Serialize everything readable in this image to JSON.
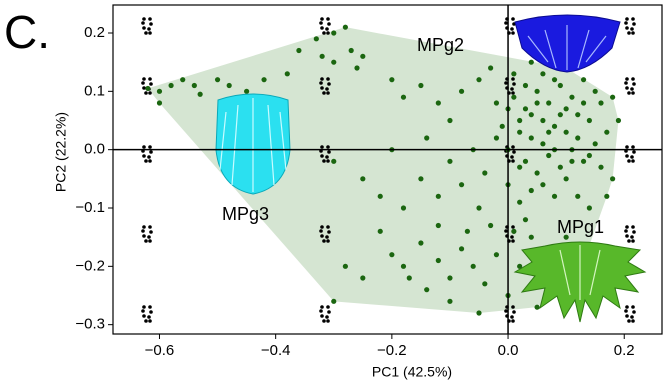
{
  "chart_data": {
    "type": "scatter",
    "panel_label": "C.",
    "xlabel": "PC1 (42.5%)",
    "ylabel": "PC2 (22.2%)",
    "annotations": [
      "MPg2",
      "MPg3",
      "MPg1"
    ],
    "xlim": [
      -0.68,
      0.265
    ],
    "ylim": [
      -0.316,
      0.248
    ],
    "xticks": [
      {
        "value": -0.6,
        "label": "−0.6"
      },
      {
        "value": -0.4,
        "label": "−0.4"
      },
      {
        "value": -0.2,
        "label": "−0.2"
      },
      {
        "value": 0,
        "label": "0.0"
      },
      0.2
    ],
    "yticks": [
      0.2,
      0.1,
      {
        "value": 0,
        "label": "0.0"
      },
      {
        "value": -0.1,
        "label": "−0.1"
      },
      {
        "value": -0.2,
        "label": "−0.2"
      },
      {
        "value": -0.3,
        "label": "−0.3"
      }
    ],
    "color": "#1b6610",
    "hull_color": "#d5e5d2",
    "x": [
      -0.62,
      -0.6,
      -0.6,
      -0.58,
      -0.56,
      -0.54,
      -0.53,
      -0.5,
      -0.48,
      -0.45,
      -0.42,
      -0.38,
      -0.36,
      -0.33,
      -0.3,
      -0.28,
      -0.3,
      -0.27,
      -0.25,
      -0.26,
      -0.32,
      -0.2,
      -0.18,
      -0.15,
      -0.1,
      -0.12,
      -0.08,
      -0.05,
      -0.03,
      -0.02,
      0.0,
      0.02,
      0.04,
      0.06,
      0.08,
      0.1,
      0.12,
      0.14,
      0.16,
      0.03,
      0.05,
      0.07,
      0.09,
      0.11,
      0.13,
      0.15,
      0.17,
      0.01,
      0.03,
      0.05,
      0.07,
      0.09,
      0.11,
      0.13,
      0.15,
      0.18,
      0.02,
      0.04,
      0.06,
      0.08,
      0.1,
      0.12,
      0.14,
      0.16,
      0.18,
      0.06,
      0.08,
      0.1,
      0.04,
      0.02,
      0.0,
      -0.01,
      -0.02,
      0.01,
      0.06,
      0.1,
      0.04,
      0.12,
      0.14,
      0.19,
      0.17,
      0.03,
      0.07,
      0.09,
      0.11,
      0.05,
      0.13,
      0.08,
      0.02,
      0.0,
      -0.3,
      -0.2,
      -0.15,
      -0.1,
      -0.12,
      -0.08,
      -0.05,
      -0.18,
      -0.22,
      -0.06,
      -0.04,
      -0.14,
      -0.25,
      -0.22,
      -0.2,
      -0.18,
      -0.15,
      -0.12,
      -0.1,
      -0.08,
      -0.06,
      -0.04,
      -0.02,
      -0.14,
      -0.1,
      -0.05,
      0.0,
      0.02,
      0.04,
      0.06,
      0.03,
      0.01,
      -0.03,
      -0.07,
      0.05,
      0.08,
      0.12,
      -0.3,
      -0.25,
      -0.28,
      -0.17,
      -0.12,
      0.1
    ],
    "values": [
      0.105,
      0.08,
      0.1,
      0.11,
      0.12,
      0.11,
      0.095,
      0.12,
      0.11,
      0.1,
      0.12,
      0.13,
      0.17,
      0.19,
      0.2,
      0.21,
      0.15,
      0.17,
      0.16,
      0.14,
      0.16,
      0.12,
      0.09,
      0.11,
      0.05,
      0.08,
      0.1,
      0.12,
      0.14,
      0.08,
      0.0,
      0.03,
      0.06,
      0.01,
      0.04,
      0.07,
      0.02,
      0.05,
      0.08,
      -0.02,
      -0.04,
      -0.01,
      -0.03,
      0.0,
      -0.02,
      0.01,
      0.03,
      0.09,
      0.11,
      0.1,
      0.08,
      0.11,
      0.09,
      0.12,
      0.1,
      0.09,
      0.05,
      0.02,
      0.05,
      0.0,
      0.03,
      0.06,
      -0.01,
      -0.03,
      -0.05,
      -0.06,
      -0.08,
      -0.05,
      -0.07,
      -0.09,
      -0.06,
      0.04,
      0.02,
      0.13,
      0.13,
      0.14,
      0.15,
      -0.08,
      -0.1,
      0.05,
      -0.08,
      0.07,
      0.03,
      0.06,
      -0.02,
      0.08,
      0.08,
      0.12,
      -0.03,
      0.07,
      -0.02,
      0.0,
      -0.05,
      -0.02,
      -0.08,
      -0.06,
      -0.1,
      -0.1,
      -0.08,
      0.0,
      -0.04,
      0.02,
      -0.05,
      -0.14,
      -0.18,
      -0.2,
      -0.16,
      -0.19,
      -0.22,
      -0.17,
      -0.2,
      -0.23,
      -0.18,
      -0.24,
      -0.26,
      -0.28,
      -0.25,
      -0.2,
      -0.15,
      -0.18,
      -0.12,
      -0.14,
      -0.13,
      -0.14,
      -0.27,
      -0.22,
      -0.22,
      -0.26,
      -0.22,
      -0.2,
      -0.22,
      -0.13,
      -0.15
    ]
  }
}
